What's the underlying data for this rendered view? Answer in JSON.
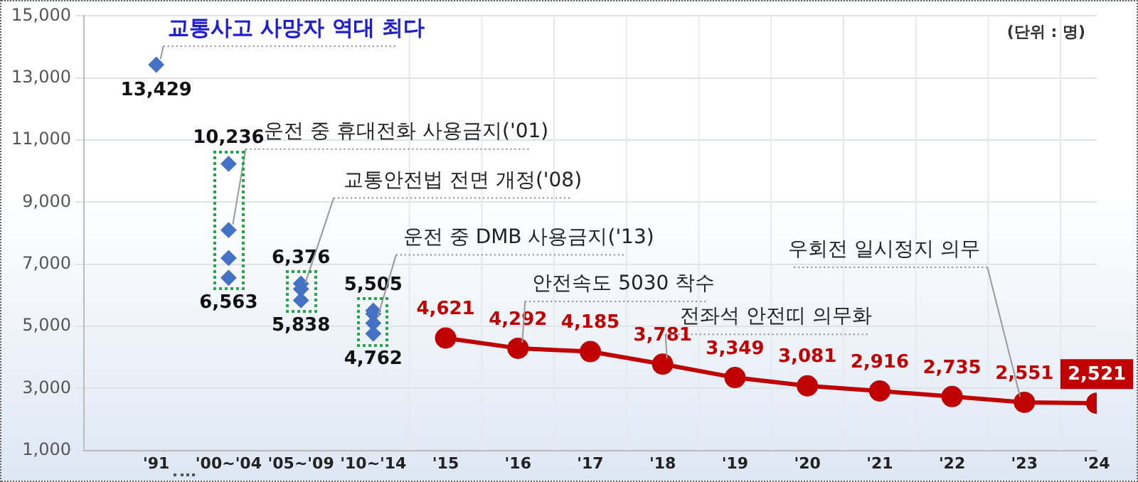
{
  "chart_data": {
    "type": "line",
    "categories": [
      "'91",
      "'00~'04",
      "'05~'09",
      "'10~'14",
      "'15",
      "'16",
      "'17",
      "'18",
      "'19",
      "'20",
      "'21",
      "'22",
      "'23",
      "'24"
    ],
    "ylim": [
      1000,
      15000
    ],
    "yticks": [
      {
        "value": 1000,
        "label": "1,000"
      },
      {
        "value": 3000,
        "label": "3,000"
      },
      {
        "value": 5000,
        "label": "5,000"
      },
      {
        "value": 7000,
        "label": "7,000"
      },
      {
        "value": 9000,
        "label": "9,000"
      },
      {
        "value": 11000,
        "label": "11,000"
      },
      {
        "value": 13000,
        "label": "13,000"
      },
      {
        "value": 15000,
        "label": "15,000"
      }
    ],
    "grid": true,
    "legend": false,
    "series": [
      {
        "type": "scatter",
        "marker": "diamond",
        "color": "#4472c4",
        "x": [
          "'91",
          "'00~'04",
          "'00~'04",
          "'00~'04",
          "'00~'04",
          "'00~'04",
          "'05~'09",
          "'05~'09",
          "'05~'09",
          "'05~'09",
          "'05~'09",
          "'10~'14",
          "'10~'14",
          "'10~'14",
          "'10~'14",
          "'10~'14"
        ],
        "values": [
          13429,
          10236,
          8100,
          7200,
          null,
          6563,
          6376,
          null,
          6200,
          null,
          5838,
          5505,
          null,
          5400,
          5100,
          4762
        ],
        "value_labels": [
          "13,429",
          "10,236",
          null,
          null,
          null,
          "6,563",
          "6,376",
          null,
          null,
          null,
          "5,838",
          "5,505",
          null,
          null,
          null,
          "4,762"
        ]
      },
      {
        "type": "line",
        "marker": "circle",
        "color": "#c00000",
        "x": [
          "'15",
          "'16",
          "'17",
          "'18",
          "'19",
          "'20",
          "'21",
          "'22",
          "'23",
          "'24"
        ],
        "values": [
          4621,
          4292,
          4185,
          3781,
          3349,
          3081,
          2916,
          2735,
          2551,
          2521
        ],
        "value_labels": [
          "4,621",
          "4,292",
          "4,185",
          "3,781",
          "3,349",
          "3,081",
          "2,916",
          "2,735",
          "2,551",
          "2,521"
        ]
      }
    ],
    "annotations": [
      {
        "text": "교통사고 사망자 역대 최다",
        "x": "'91",
        "y": 13429
      },
      {
        "text": "운전 중 휴대전화 사용금지('01)",
        "x": "'00~'04",
        "y": 8100
      },
      {
        "text": "교통안전법 전면 개정('08)",
        "x": "'05~'09",
        "y": 6200
      },
      {
        "text": "운전 중 DMB 사용금지('13)",
        "x": "'10~'14",
        "y": 5100
      },
      {
        "text": "안전속도 5030 착수",
        "x": "'16",
        "y": 4292
      },
      {
        "text": "전좌석 안전띠 의무화",
        "x": "'18",
        "y": 3781
      },
      {
        "text": "우회전 일시정지 의무",
        "x": "'23",
        "y": 2551
      },
      "(단위 : 명)"
    ]
  }
}
